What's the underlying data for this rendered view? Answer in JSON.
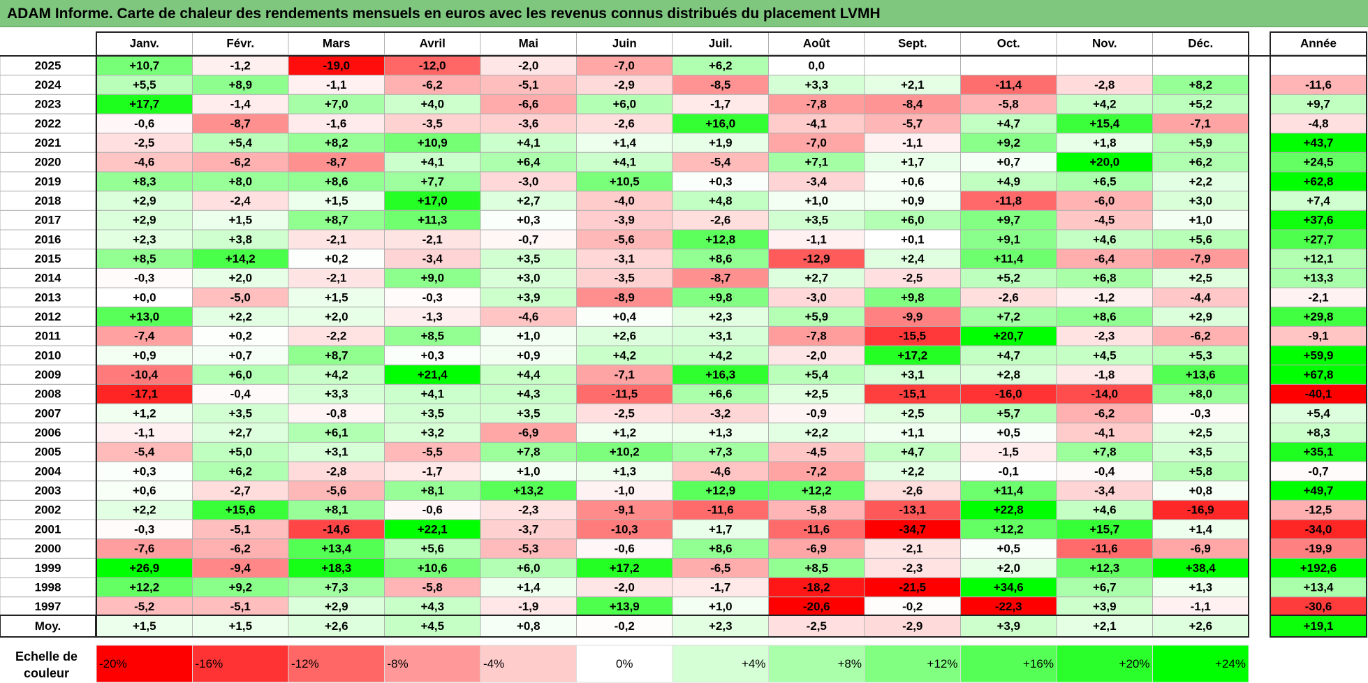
{
  "title": "ADAM Informe. Carte de chaleur des rendements mensuels en euros avec les revenus connus distribués du placement LVMH",
  "chart_data": {
    "type": "heatmap",
    "months": [
      "Janv.",
      "Févr.",
      "Mars",
      "Avril",
      "Mai",
      "Juin",
      "Juil.",
      "Août",
      "Sept.",
      "Oct.",
      "Nov.",
      "Déc."
    ],
    "year_header": "Année",
    "avg_label": "Moy.",
    "rows": [
      {
        "year": "2025",
        "values": [
          "+10,7",
          "-1,2",
          "-19,0",
          "-12,0",
          "-2,0",
          "-7,0",
          "+6,2",
          "0,0",
          "",
          "",
          "",
          ""
        ],
        "annual": ""
      },
      {
        "year": "2024",
        "values": [
          "+5,5",
          "+8,9",
          "-1,1",
          "-6,2",
          "-5,1",
          "-2,9",
          "-8,5",
          "+3,3",
          "+2,1",
          "-11,4",
          "-2,8",
          "+8,2"
        ],
        "annual": "-11,6"
      },
      {
        "year": "2023",
        "values": [
          "+17,7",
          "-1,4",
          "+7,0",
          "+4,0",
          "-6,6",
          "+6,0",
          "-1,7",
          "-7,8",
          "-8,4",
          "-5,8",
          "+4,2",
          "+5,2"
        ],
        "annual": "+9,7"
      },
      {
        "year": "2022",
        "values": [
          "-0,6",
          "-8,7",
          "-1,6",
          "-3,5",
          "-3,6",
          "-2,6",
          "+16,0",
          "-4,1",
          "-5,7",
          "+4,7",
          "+15,4",
          "-7,1"
        ],
        "annual": "-4,8"
      },
      {
        "year": "2021",
        "values": [
          "-2,5",
          "+5,4",
          "+8,2",
          "+10,9",
          "+4,1",
          "+1,4",
          "+1,9",
          "-7,0",
          "-1,1",
          "+9,2",
          "+1,8",
          "+5,9"
        ],
        "annual": "+43,7"
      },
      {
        "year": "2020",
        "values": [
          "-4,6",
          "-6,2",
          "-8,7",
          "+4,1",
          "+6,4",
          "+4,1",
          "-5,4",
          "+7,1",
          "+1,7",
          "+0,7",
          "+20,0",
          "+6,2"
        ],
        "annual": "+24,5"
      },
      {
        "year": "2019",
        "values": [
          "+8,3",
          "+8,0",
          "+8,6",
          "+7,7",
          "-3,0",
          "+10,5",
          "+0,3",
          "-3,4",
          "+0,6",
          "+4,9",
          "+6,5",
          "+2,2"
        ],
        "annual": "+62,8"
      },
      {
        "year": "2018",
        "values": [
          "+2,9",
          "-2,4",
          "+1,5",
          "+17,0",
          "+2,7",
          "-4,0",
          "+4,8",
          "+1,0",
          "+0,9",
          "-11,8",
          "-6,0",
          "+3,0"
        ],
        "annual": "+7,4"
      },
      {
        "year": "2017",
        "values": [
          "+2,9",
          "+1,5",
          "+8,7",
          "+11,3",
          "+0,3",
          "-3,9",
          "-2,6",
          "+3,5",
          "+6,0",
          "+9,7",
          "-4,5",
          "+1,0"
        ],
        "annual": "+37,6"
      },
      {
        "year": "2016",
        "values": [
          "+2,3",
          "+3,8",
          "-2,1",
          "-2,1",
          "-0,7",
          "-5,6",
          "+12,8",
          "-1,1",
          "+0,1",
          "+9,1",
          "+4,6",
          "+5,6"
        ],
        "annual": "+27,7"
      },
      {
        "year": "2015",
        "values": [
          "+8,5",
          "+14,2",
          "+0,2",
          "-3,4",
          "+3,5",
          "-3,1",
          "+8,6",
          "-12,9",
          "+2,4",
          "+11,4",
          "-6,4",
          "-7,9"
        ],
        "annual": "+12,1"
      },
      {
        "year": "2014",
        "values": [
          "-0,3",
          "+2,0",
          "-2,1",
          "+9,0",
          "+3,0",
          "-3,5",
          "-8,7",
          "+2,7",
          "-2,5",
          "+5,2",
          "+6,8",
          "+2,5"
        ],
        "annual": "+13,3"
      },
      {
        "year": "2013",
        "values": [
          "+0,0",
          "-5,0",
          "+1,5",
          "-0,3",
          "+3,9",
          "-8,9",
          "+9,8",
          "-3,0",
          "+9,8",
          "-2,6",
          "-1,2",
          "-4,4"
        ],
        "annual": "-2,1"
      },
      {
        "year": "2012",
        "values": [
          "+13,0",
          "+2,2",
          "+2,0",
          "-1,3",
          "-4,6",
          "+0,4",
          "+2,3",
          "+5,9",
          "-9,9",
          "+7,2",
          "+8,6",
          "+2,9"
        ],
        "annual": "+29,8"
      },
      {
        "year": "2011",
        "values": [
          "-7,4",
          "+0,2",
          "-2,2",
          "+8,5",
          "+1,0",
          "+2,6",
          "+3,1",
          "-7,8",
          "-15,5",
          "+20,7",
          "-2,3",
          "-6,2"
        ],
        "annual": "-9,1"
      },
      {
        "year": "2010",
        "values": [
          "+0,9",
          "+0,7",
          "+8,7",
          "+0,3",
          "+0,9",
          "+4,2",
          "+4,2",
          "-2,0",
          "+17,2",
          "+4,7",
          "+4,5",
          "+5,3"
        ],
        "annual": "+59,9"
      },
      {
        "year": "2009",
        "values": [
          "-10,4",
          "+6,0",
          "+4,2",
          "+21,4",
          "+4,4",
          "-7,1",
          "+16,3",
          "+5,4",
          "+3,1",
          "+2,8",
          "-1,8",
          "+13,6"
        ],
        "annual": "+67,8"
      },
      {
        "year": "2008",
        "values": [
          "-17,1",
          "-0,4",
          "+3,3",
          "+4,1",
          "+4,3",
          "-11,5",
          "+6,6",
          "+2,5",
          "-15,1",
          "-16,0",
          "-14,0",
          "+8,0"
        ],
        "annual": "-40,1"
      },
      {
        "year": "2007",
        "values": [
          "+1,2",
          "+3,5",
          "-0,8",
          "+3,5",
          "+3,5",
          "-2,5",
          "-3,2",
          "-0,9",
          "+2,5",
          "+5,7",
          "-6,2",
          "-0,3"
        ],
        "annual": "+5,4"
      },
      {
        "year": "2006",
        "values": [
          "-1,1",
          "+2,7",
          "+6,1",
          "+3,2",
          "-6,9",
          "+1,2",
          "+1,3",
          "+2,2",
          "+1,1",
          "+0,5",
          "-4,1",
          "+2,5"
        ],
        "annual": "+8,3"
      },
      {
        "year": "2005",
        "values": [
          "-5,4",
          "+5,0",
          "+3,1",
          "-5,5",
          "+7,8",
          "+10,2",
          "+7,3",
          "-4,5",
          "+4,7",
          "-1,5",
          "+7,8",
          "+3,5"
        ],
        "annual": "+35,1"
      },
      {
        "year": "2004",
        "values": [
          "+0,3",
          "+6,2",
          "-2,8",
          "-1,7",
          "+1,0",
          "+1,3",
          "-4,6",
          "-7,2",
          "+2,2",
          "-0,1",
          "-0,4",
          "+5,8"
        ],
        "annual": "-0,7"
      },
      {
        "year": "2003",
        "values": [
          "+0,6",
          "-2,7",
          "-5,6",
          "+8,1",
          "+13,2",
          "-1,0",
          "+12,9",
          "+12,2",
          "-2,6",
          "+11,4",
          "-3,4",
          "+0,8"
        ],
        "annual": "+49,7"
      },
      {
        "year": "2002",
        "values": [
          "+2,2",
          "+15,6",
          "+8,1",
          "-0,6",
          "-2,3",
          "-9,1",
          "-11,6",
          "-5,8",
          "-13,1",
          "+22,8",
          "+4,6",
          "-16,9"
        ],
        "annual": "-12,5"
      },
      {
        "year": "2001",
        "values": [
          "-0,3",
          "-5,1",
          "-14,6",
          "+22,1",
          "-3,7",
          "-10,3",
          "+1,7",
          "-11,6",
          "-34,7",
          "+12,2",
          "+15,7",
          "+1,4"
        ],
        "annual": "-34,0"
      },
      {
        "year": "2000",
        "values": [
          "-7,6",
          "-6,2",
          "+13,4",
          "+5,6",
          "-5,3",
          "-0,6",
          "+8,6",
          "-6,9",
          "-2,1",
          "+0,5",
          "-11,6",
          "-6,9"
        ],
        "annual": "-19,9"
      },
      {
        "year": "1999",
        "values": [
          "+26,9",
          "-9,4",
          "+18,3",
          "+10,6",
          "+6,0",
          "+17,2",
          "-6,5",
          "+8,5",
          "-2,3",
          "+2,0",
          "+12,3",
          "+38,4"
        ],
        "annual": "+192,6"
      },
      {
        "year": "1998",
        "values": [
          "+12,2",
          "+9,2",
          "+7,3",
          "-5,8",
          "+1,4",
          "-2,0",
          "-1,7",
          "-18,2",
          "-21,5",
          "+34,6",
          "+6,7",
          "+1,3"
        ],
        "annual": "+13,4"
      },
      {
        "year": "1997",
        "values": [
          "-5,2",
          "-5,1",
          "+2,9",
          "+4,3",
          "-1,9",
          "+13,9",
          "+1,0",
          "-20,6",
          "-0,2",
          "-22,3",
          "+3,9",
          "-1,1"
        ],
        "annual": "-30,6"
      }
    ],
    "averages": [
      "+1,5",
      "+1,5",
      "+2,6",
      "+4,5",
      "+0,8",
      "-0,2",
      "+2,3",
      "-2,5",
      "-2,9",
      "+3,9",
      "+2,1",
      "+2,6"
    ],
    "average_annual": "+19,1",
    "scale_title": "Echelle de couleur",
    "scale_labels": [
      "-20%",
      "-16%",
      "-12%",
      "-8%",
      "-4%",
      "0%",
      "+4%",
      "+8%",
      "+12%",
      "+16%",
      "+20%",
      "+24%"
    ],
    "colors": {
      "negative_max": "#ff0000",
      "neutral": "#ffffff",
      "positive_max": "#00ff00",
      "title_bar": "#7fc77f",
      "grid": "#b0b0b0"
    }
  }
}
